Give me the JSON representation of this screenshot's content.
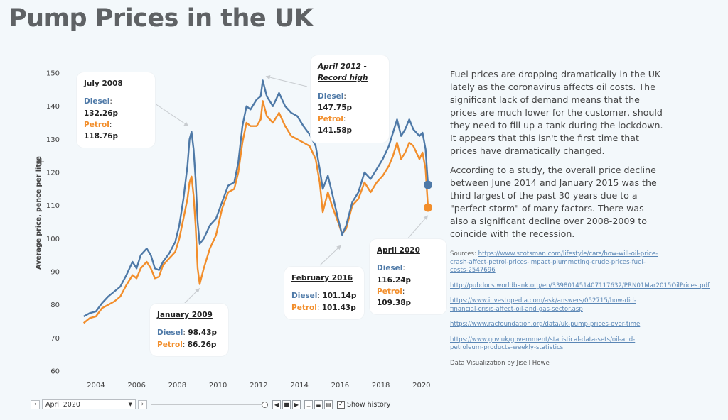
{
  "page": {
    "title": "Pump Prices in the UK",
    "description": [
      "Fuel prices are dropping dramatically in the UK lately as the coronavirus affects oil costs. The significant lack of demand means that the prices are much lower for the customer, should they need to fill up a tank during the lockdown. It appears that this isn't the first time that prices have dramatically changed.",
      "According to a study, the overall price decline between June 2014 and January 2015 was the third largest of the past 30 years due to a \"perfect storm\" of many factors. There was also a significant decline over 2008-2009 to coincide with the recession."
    ],
    "sources_label": "Sources:",
    "sources": [
      "https://www.scotsman.com/lifestyle/cars/how-will-oil-price-crash-affect-petrol-prices-impact-plummeting-crude-prices-fuel-costs-2547696",
      "http://pubdocs.worldbank.org/en/339801451407117632/PRN01Mar2015OilPrices.pdf",
      "https://www.investopedia.com/ask/answers/052715/how-did-financial-crisis-affect-oil-and-gas-sector.asp",
      "https://www.racfoundation.org/data/uk-pump-prices-over-time",
      "https://www.gov.uk/government/statistical-data-sets/oil-and-petroleum-products-weekly-statistics"
    ],
    "credit": "Data Visualization by Jisell Howe"
  },
  "controls": {
    "selected_date": "April 2020",
    "show_history_label": "Show history",
    "prev_icon": "chevron-left-icon",
    "next_icon": "chevron-right-icon",
    "dropdown_icon": "caret-down-icon"
  },
  "chart_data": {
    "type": "line",
    "ylabel": "Average price, pence per litre",
    "ylim": [
      60,
      150
    ],
    "yticks": [
      60,
      70,
      80,
      90,
      100,
      110,
      120,
      130,
      140,
      150
    ],
    "xticks": [
      2004,
      2006,
      2008,
      2010,
      2012,
      2014,
      2016,
      2018,
      2020
    ],
    "xlim": [
      2003.2,
      2020.6
    ],
    "grid": false,
    "series": [
      {
        "name": "Diesel",
        "color": "#4e79a7",
        "points": [
          [
            2003.4,
            76.5
          ],
          [
            2003.7,
            77.5
          ],
          [
            2004.0,
            78.0
          ],
          [
            2004.3,
            80.5
          ],
          [
            2004.6,
            82.5
          ],
          [
            2004.9,
            84.0
          ],
          [
            2005.2,
            85.5
          ],
          [
            2005.5,
            89.0
          ],
          [
            2005.8,
            93.0
          ],
          [
            2006.0,
            91.0
          ],
          [
            2006.2,
            95.0
          ],
          [
            2006.5,
            97.0
          ],
          [
            2006.7,
            95.0
          ],
          [
            2006.9,
            91.0
          ],
          [
            2007.1,
            90.5
          ],
          [
            2007.3,
            93.0
          ],
          [
            2007.6,
            95.5
          ],
          [
            2007.9,
            99.0
          ],
          [
            2008.1,
            104.0
          ],
          [
            2008.3,
            112.0
          ],
          [
            2008.5,
            122.0
          ],
          [
            2008.6,
            130.0
          ],
          [
            2008.7,
            132.26
          ],
          [
            2008.8,
            127.0
          ],
          [
            2008.9,
            118.0
          ],
          [
            2009.0,
            105.0
          ],
          [
            2009.1,
            98.43
          ],
          [
            2009.3,
            100.0
          ],
          [
            2009.6,
            104.0
          ],
          [
            2009.9,
            106.0
          ],
          [
            2010.2,
            111.0
          ],
          [
            2010.5,
            116.0
          ],
          [
            2010.8,
            117.0
          ],
          [
            2011.0,
            123.0
          ],
          [
            2011.2,
            134.0
          ],
          [
            2011.4,
            140.0
          ],
          [
            2011.6,
            139.0
          ],
          [
            2011.9,
            142.0
          ],
          [
            2012.1,
            143.0
          ],
          [
            2012.2,
            147.75
          ],
          [
            2012.4,
            143.0
          ],
          [
            2012.7,
            140.0
          ],
          [
            2013.0,
            144.0
          ],
          [
            2013.3,
            140.0
          ],
          [
            2013.6,
            138.0
          ],
          [
            2013.9,
            137.0
          ],
          [
            2014.2,
            134.0
          ],
          [
            2014.5,
            131.5
          ],
          [
            2014.8,
            128.0
          ],
          [
            2015.0,
            121.0
          ],
          [
            2015.15,
            115.0
          ],
          [
            2015.4,
            119.0
          ],
          [
            2015.6,
            114.0
          ],
          [
            2015.9,
            106.0
          ],
          [
            2016.1,
            101.14
          ],
          [
            2016.3,
            104.0
          ],
          [
            2016.6,
            111.0
          ],
          [
            2016.9,
            114.0
          ],
          [
            2017.2,
            120.0
          ],
          [
            2017.5,
            118.0
          ],
          [
            2017.8,
            121.0
          ],
          [
            2018.1,
            124.0
          ],
          [
            2018.4,
            128.0
          ],
          [
            2018.6,
            132.0
          ],
          [
            2018.8,
            136.0
          ],
          [
            2019.0,
            131.0
          ],
          [
            2019.2,
            133.0
          ],
          [
            2019.4,
            136.0
          ],
          [
            2019.6,
            133.0
          ],
          [
            2019.9,
            131.0
          ],
          [
            2020.05,
            132.0
          ],
          [
            2020.2,
            127.0
          ],
          [
            2020.32,
            116.24
          ]
        ]
      },
      {
        "name": "Petrol",
        "color": "#f28e2b",
        "points": [
          [
            2003.4,
            74.5
          ],
          [
            2003.7,
            76.0
          ],
          [
            2004.0,
            76.5
          ],
          [
            2004.3,
            79.0
          ],
          [
            2004.6,
            80.0
          ],
          [
            2004.9,
            81.0
          ],
          [
            2005.2,
            82.5
          ],
          [
            2005.5,
            86.0
          ],
          [
            2005.8,
            89.0
          ],
          [
            2006.0,
            88.0
          ],
          [
            2006.2,
            91.0
          ],
          [
            2006.5,
            93.0
          ],
          [
            2006.7,
            91.0
          ],
          [
            2006.9,
            88.0
          ],
          [
            2007.1,
            88.5
          ],
          [
            2007.3,
            92.0
          ],
          [
            2007.6,
            94.0
          ],
          [
            2007.9,
            96.0
          ],
          [
            2008.1,
            100.0
          ],
          [
            2008.3,
            106.0
          ],
          [
            2008.5,
            112.0
          ],
          [
            2008.6,
            117.0
          ],
          [
            2008.7,
            118.76
          ],
          [
            2008.8,
            113.0
          ],
          [
            2008.9,
            104.0
          ],
          [
            2009.0,
            91.0
          ],
          [
            2009.1,
            86.26
          ],
          [
            2009.3,
            91.0
          ],
          [
            2009.6,
            97.0
          ],
          [
            2009.9,
            101.0
          ],
          [
            2010.2,
            109.0
          ],
          [
            2010.5,
            114.0
          ],
          [
            2010.8,
            115.0
          ],
          [
            2011.0,
            120.0
          ],
          [
            2011.2,
            129.0
          ],
          [
            2011.4,
            135.0
          ],
          [
            2011.6,
            134.0
          ],
          [
            2011.9,
            134.0
          ],
          [
            2012.1,
            136.0
          ],
          [
            2012.2,
            141.58
          ],
          [
            2012.4,
            137.0
          ],
          [
            2012.7,
            135.0
          ],
          [
            2013.0,
            138.0
          ],
          [
            2013.3,
            134.0
          ],
          [
            2013.6,
            131.0
          ],
          [
            2013.9,
            130.0
          ],
          [
            2014.2,
            129.0
          ],
          [
            2014.5,
            128.0
          ],
          [
            2014.8,
            124.0
          ],
          [
            2015.0,
            117.0
          ],
          [
            2015.15,
            108.0
          ],
          [
            2015.4,
            114.0
          ],
          [
            2015.6,
            110.0
          ],
          [
            2015.9,
            105.0
          ],
          [
            2016.1,
            101.43
          ],
          [
            2016.3,
            103.0
          ],
          [
            2016.6,
            110.0
          ],
          [
            2016.9,
            112.0
          ],
          [
            2017.2,
            117.0
          ],
          [
            2017.5,
            114.0
          ],
          [
            2017.8,
            117.0
          ],
          [
            2018.1,
            119.0
          ],
          [
            2018.4,
            122.0
          ],
          [
            2018.6,
            125.0
          ],
          [
            2018.8,
            129.0
          ],
          [
            2019.0,
            124.0
          ],
          [
            2019.2,
            126.0
          ],
          [
            2019.4,
            129.0
          ],
          [
            2019.6,
            128.0
          ],
          [
            2019.9,
            124.0
          ],
          [
            2020.05,
            126.0
          ],
          [
            2020.2,
            121.0
          ],
          [
            2020.32,
            109.38
          ]
        ]
      }
    ],
    "annotations": [
      {
        "title": "July 2008",
        "italic": false,
        "diesel": "132.26p",
        "petrol": "118.76p",
        "x": 2008.7,
        "y": 131
      },
      {
        "title": "January 2009",
        "italic": false,
        "diesel": "98.43p",
        "petrol": "86.26p",
        "x": 2009.1,
        "y": 86
      },
      {
        "title": "April 2012 - Record high",
        "italic": true,
        "diesel": "147.75p",
        "petrol": "141.58p",
        "x": 2012.2,
        "y": 147
      },
      {
        "title": "February 2016",
        "italic": false,
        "diesel": "101.14p",
        "petrol": "101.43p",
        "x": 2016.1,
        "y": 101
      },
      {
        "title": "April 2020",
        "italic": false,
        "diesel": "116.24p",
        "petrol": "109.38p",
        "x": 2020.32,
        "y": 109
      }
    ],
    "end_markers": [
      {
        "series": "Diesel",
        "x": 2020.32,
        "y": 116.24
      },
      {
        "series": "Petrol",
        "x": 2020.32,
        "y": 109.38
      }
    ]
  }
}
